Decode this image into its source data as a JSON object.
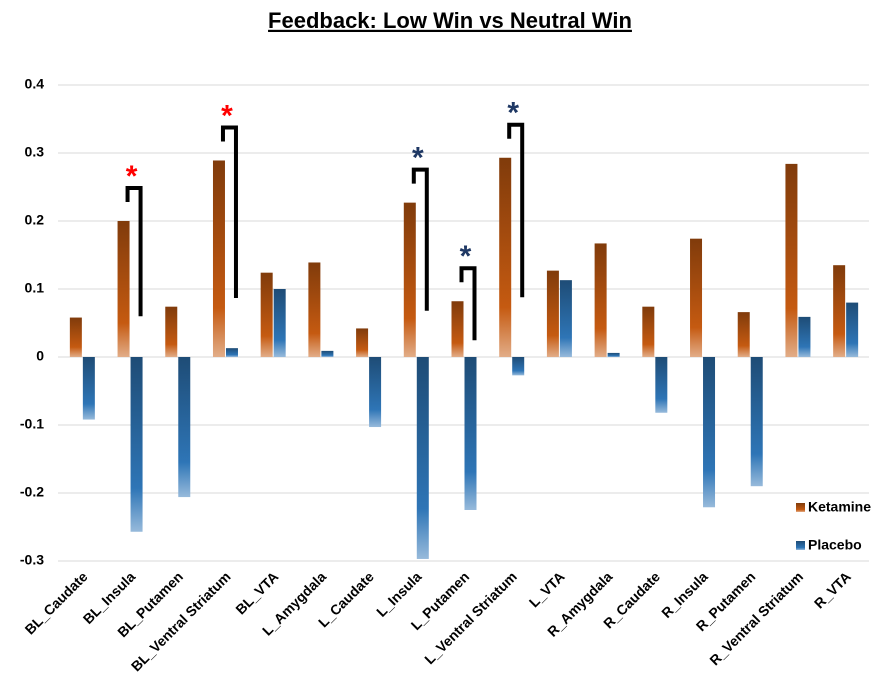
{
  "chart_data": {
    "type": "bar",
    "title": "Feedback: Low Win vs Neutral Win",
    "categories": [
      "BL_Caudate",
      "BL_Insula",
      "BL_Putamen",
      "BL_Ventral Striatum",
      "BL_VTA",
      "L_Amygdala",
      "L_Caudate",
      "L_Insula",
      "L_Putamen",
      "L_Ventral Striatum",
      "L_VTA",
      "R_Amygdala",
      "R_Caudate",
      "R_Insula",
      "R_Putamen",
      "R_Ventral Striatum",
      "R_VTA"
    ],
    "series": [
      {
        "name": "Ketamine",
        "color": "#c55a11",
        "values": [
          0.058,
          0.2,
          0.074,
          0.289,
          0.124,
          0.139,
          0.042,
          0.227,
          0.082,
          0.293,
          0.127,
          0.167,
          0.074,
          0.174,
          0.066,
          0.284,
          0.135
        ]
      },
      {
        "name": "Placebo",
        "color": "#2e75b6",
        "values": [
          -0.092,
          -0.257,
          -0.206,
          0.013,
          0.1,
          0.009,
          -0.103,
          -0.297,
          -0.225,
          -0.027,
          0.113,
          0.006,
          -0.082,
          -0.221,
          -0.19,
          0.059,
          0.08
        ]
      }
    ],
    "ylim": [
      -0.3,
      0.4
    ],
    "yticks": [
      -0.3,
      -0.2,
      -0.1,
      0,
      0.1,
      0.2,
      0.3,
      0.4
    ],
    "legend": "right",
    "annotations": [
      {
        "text": "*",
        "category": "BL_Insula",
        "color": "#ff0000"
      },
      {
        "text": "*",
        "category": "BL_Ventral Striatum",
        "color": "#ff0000"
      },
      {
        "text": "*",
        "category": "L_Insula",
        "color": "#1f3864"
      },
      {
        "text": "*",
        "category": "L_Putamen",
        "color": "#1f3864"
      },
      {
        "text": "*",
        "category": "L_Ventral Striatum",
        "color": "#1f3864"
      }
    ]
  }
}
